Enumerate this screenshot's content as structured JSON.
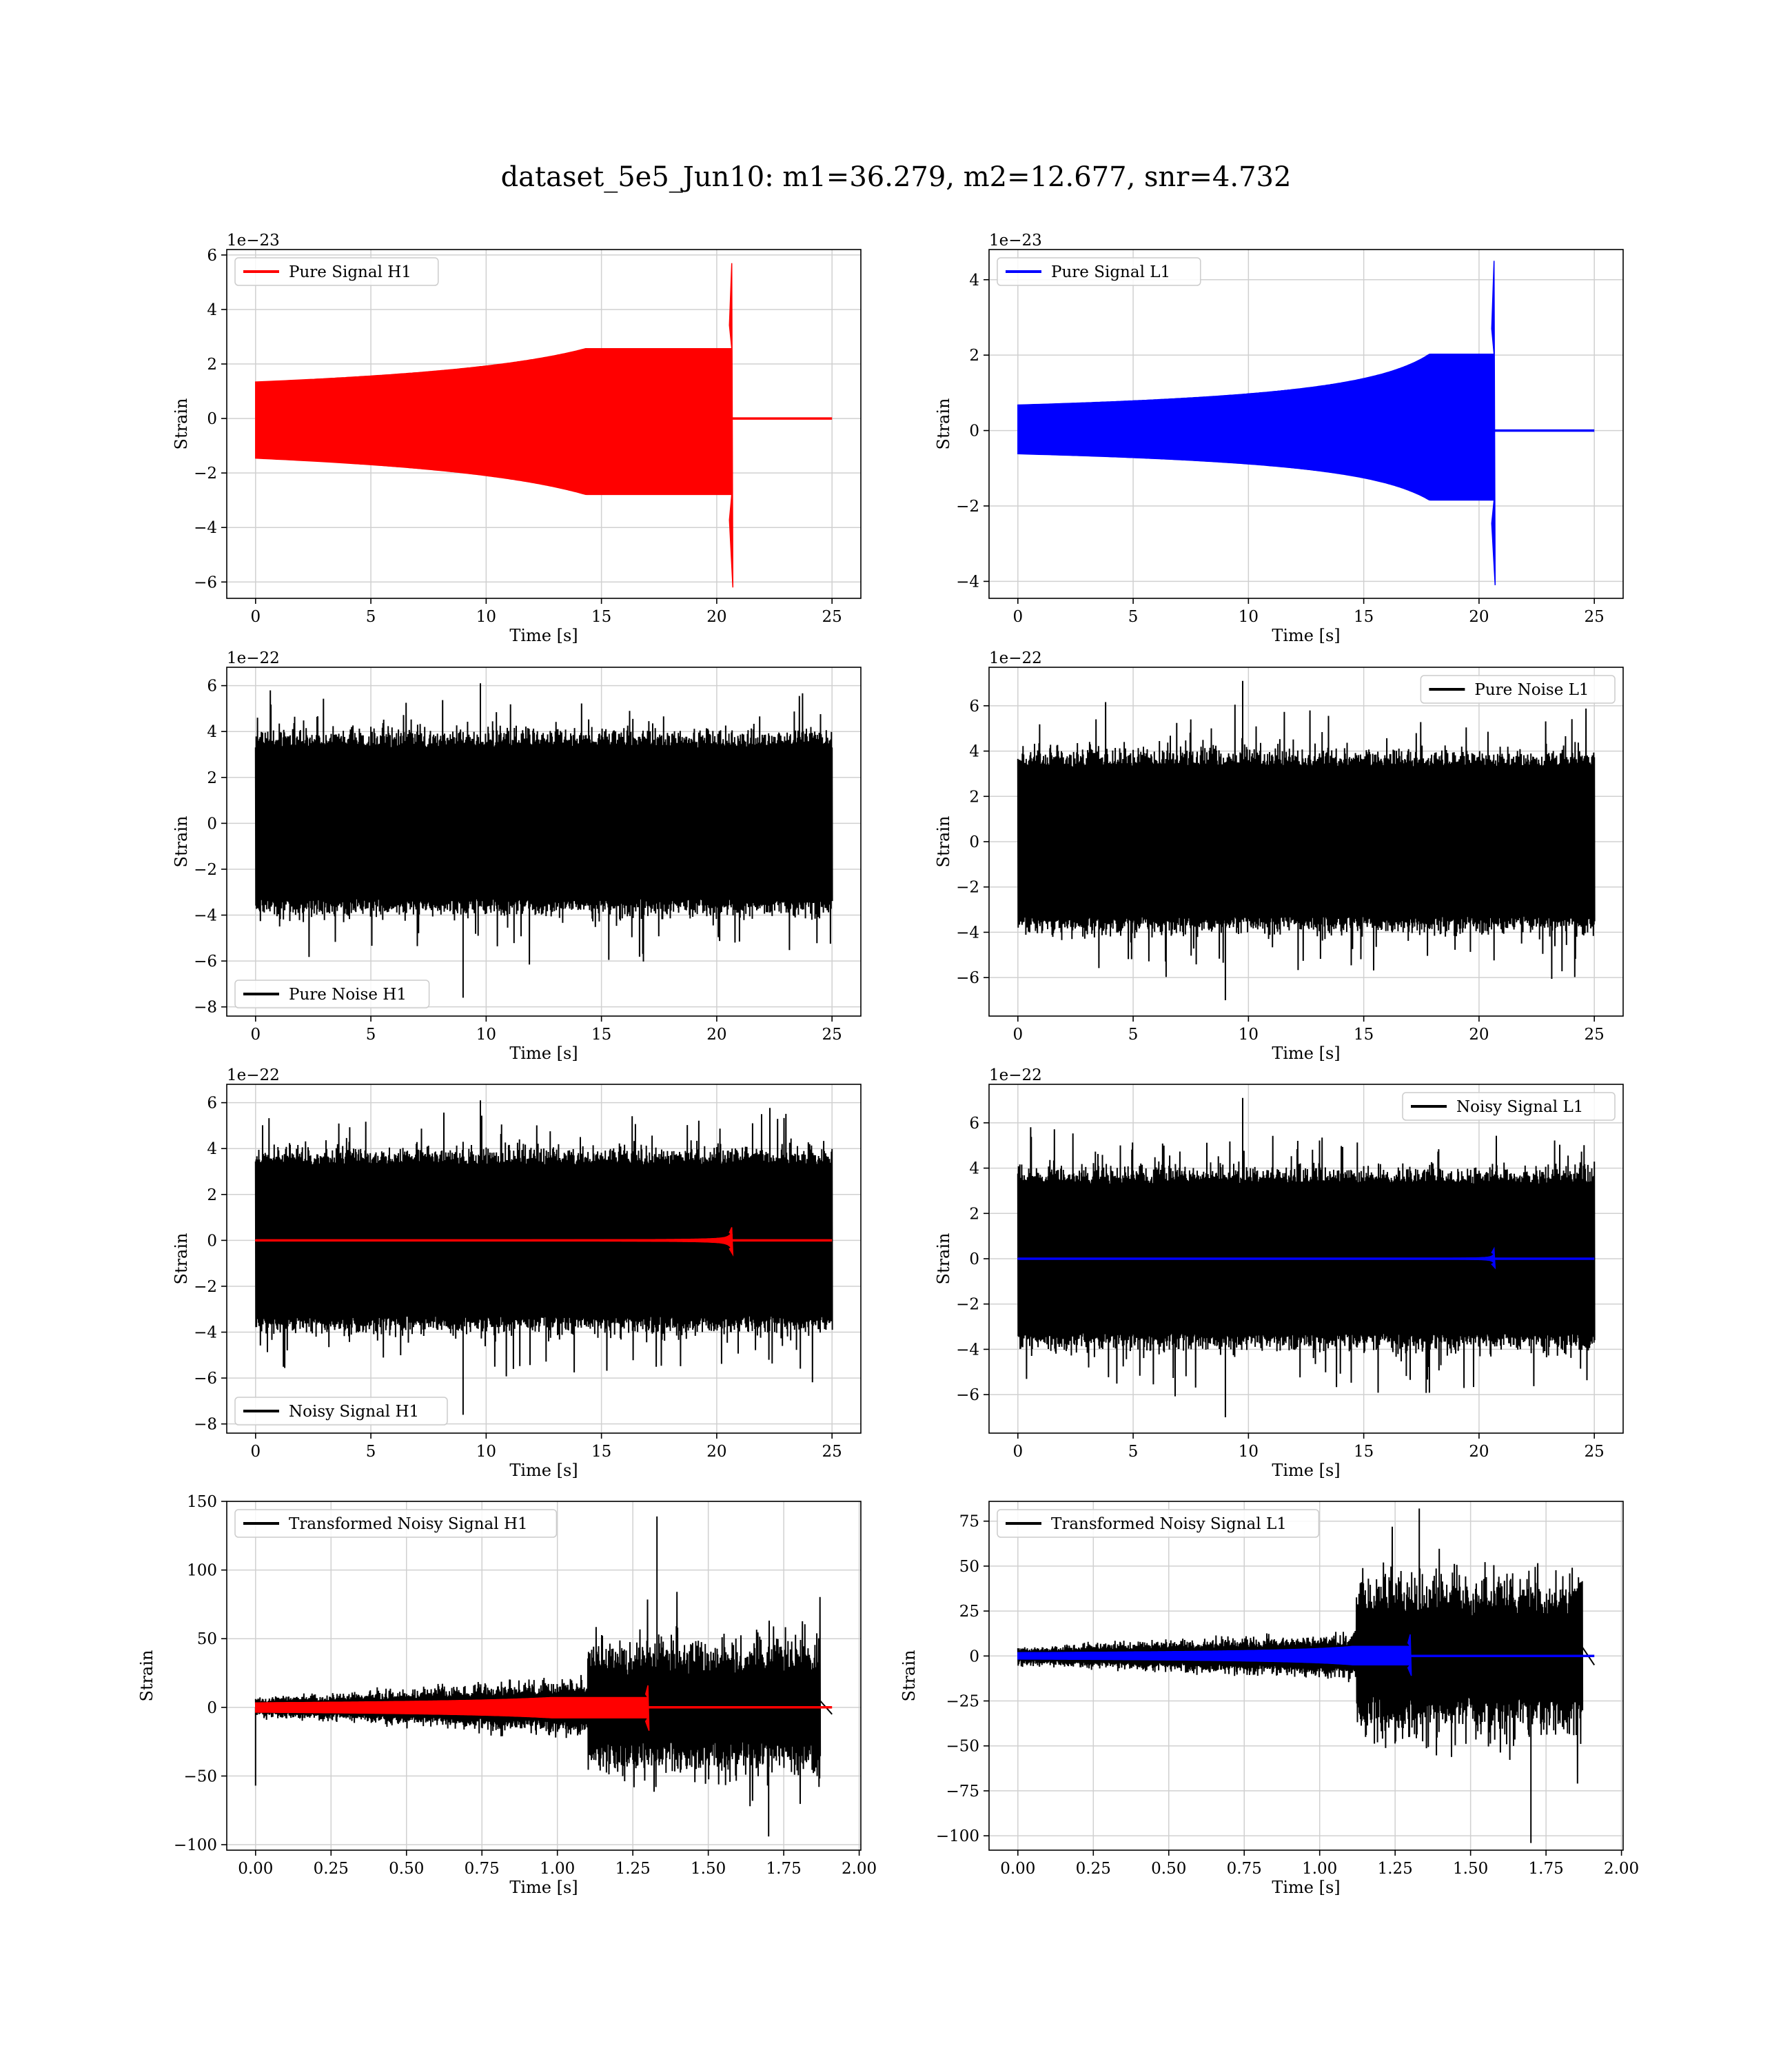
{
  "figure": {
    "title": "dataset_5e5_Jun10: m1=36.279, m2=12.677, snr=4.732"
  },
  "colors": {
    "signal_h1": "#ff0000",
    "signal_l1": "#0000ff",
    "noise": "#000000",
    "grid": "#d0d0d0"
  },
  "chart_data": [
    {
      "id": "pure-signal-h1",
      "type": "line",
      "xlabel": "Time [s]",
      "ylabel": "Strain",
      "offset_text": "1e−23",
      "xlim": [
        -1.25,
        26.25
      ],
      "ylim": [
        -6.6,
        6.2
      ],
      "xticks": [
        0,
        5,
        10,
        15,
        20,
        25
      ],
      "yticks": [
        -6,
        -4,
        -2,
        0,
        2,
        4,
        6
      ],
      "xtick_labels": [
        "0",
        "5",
        "10",
        "15",
        "20",
        "25"
      ],
      "ytick_labels": [
        "−6",
        "−4",
        "−2",
        "0",
        "2",
        "4",
        "6"
      ],
      "legend": {
        "placement": "upper-left",
        "entries": [
          {
            "label": "Pure Signal H1",
            "color": "#ff0000"
          }
        ]
      },
      "series": [
        {
          "name": "Pure Signal H1",
          "color": "#ff0000",
          "kind": "chirp",
          "duration": 25,
          "merger": 20.65,
          "peak_pos": 5.7,
          "peak_neg": -6.2,
          "pre_amp": 2.5
        }
      ],
      "grid": true
    },
    {
      "id": "pure-signal-l1",
      "type": "line",
      "xlabel": "Time [s]",
      "ylabel": "Strain",
      "offset_text": "1e−23",
      "xlim": [
        -1.25,
        26.25
      ],
      "ylim": [
        -4.45,
        4.8
      ],
      "xticks": [
        0,
        5,
        10,
        15,
        20,
        25
      ],
      "yticks": [
        -4,
        -2,
        0,
        2,
        4
      ],
      "xtick_labels": [
        "0",
        "5",
        "10",
        "15",
        "20",
        "25"
      ],
      "ytick_labels": [
        "−4",
        "−2",
        "0",
        "2",
        "4"
      ],
      "legend": {
        "placement": "upper-left",
        "entries": [
          {
            "label": "Pure Signal L1",
            "color": "#0000ff"
          }
        ]
      },
      "series": [
        {
          "name": "Pure Signal L1",
          "color": "#0000ff",
          "kind": "chirp",
          "duration": 25,
          "merger": 20.65,
          "peak_pos": 4.5,
          "peak_neg": -4.1,
          "pre_amp": 1.6
        }
      ],
      "grid": true
    },
    {
      "id": "pure-noise-h1",
      "type": "line",
      "xlabel": "Time [s]",
      "ylabel": "Strain",
      "offset_text": "1e−22",
      "xlim": [
        -1.25,
        26.25
      ],
      "ylim": [
        -8.4,
        6.8
      ],
      "xticks": [
        0,
        5,
        10,
        15,
        20,
        25
      ],
      "yticks": [
        -8,
        -6,
        -4,
        -2,
        0,
        2,
        4,
        6
      ],
      "xtick_labels": [
        "0",
        "5",
        "10",
        "15",
        "20",
        "25"
      ],
      "ytick_labels": [
        "−8",
        "−6",
        "−4",
        "−2",
        "0",
        "2",
        "4",
        "6"
      ],
      "legend": {
        "placement": "lower-left",
        "entries": [
          {
            "label": "Pure Noise H1",
            "color": "#000000"
          }
        ]
      },
      "series": [
        {
          "name": "Pure Noise H1",
          "color": "#000000",
          "kind": "noise",
          "duration": 25,
          "spike_max": 6.1,
          "spike_min": -7.6
        }
      ],
      "grid": true
    },
    {
      "id": "pure-noise-l1",
      "type": "line",
      "xlabel": "Time [s]",
      "ylabel": "Strain",
      "offset_text": "1e−22",
      "xlim": [
        -1.25,
        26.25
      ],
      "ylim": [
        -7.7,
        7.7
      ],
      "xticks": [
        0,
        5,
        10,
        15,
        20,
        25
      ],
      "yticks": [
        -6,
        -4,
        -2,
        0,
        2,
        4,
        6
      ],
      "xtick_labels": [
        "0",
        "5",
        "10",
        "15",
        "20",
        "25"
      ],
      "ytick_labels": [
        "−6",
        "−4",
        "−2",
        "0",
        "2",
        "4",
        "6"
      ],
      "legend": {
        "placement": "upper-right",
        "entries": [
          {
            "label": "Pure Noise L1",
            "color": "#000000"
          }
        ]
      },
      "series": [
        {
          "name": "Pure Noise L1",
          "color": "#000000",
          "kind": "noise",
          "duration": 25,
          "spike_max": 7.1,
          "spike_min": -7.0
        }
      ],
      "grid": true
    },
    {
      "id": "noisy-signal-h1",
      "type": "line",
      "xlabel": "Time [s]",
      "ylabel": "Strain",
      "offset_text": "1e−22",
      "xlim": [
        -1.25,
        26.25
      ],
      "ylim": [
        -8.4,
        6.8
      ],
      "xticks": [
        0,
        5,
        10,
        15,
        20,
        25
      ],
      "yticks": [
        -8,
        -6,
        -4,
        -2,
        0,
        2,
        4,
        6
      ],
      "xtick_labels": [
        "0",
        "5",
        "10",
        "15",
        "20",
        "25"
      ],
      "ytick_labels": [
        "−8",
        "−6",
        "−4",
        "−2",
        "0",
        "2",
        "4",
        "6"
      ],
      "legend": {
        "placement": "lower-left",
        "entries": [
          {
            "label": "Noisy Signal H1",
            "color": "#000000"
          }
        ]
      },
      "series": [
        {
          "name": "Noisy Signal H1",
          "color": "#000000",
          "kind": "noise",
          "duration": 25,
          "spike_max": 6.1,
          "spike_min": -7.6
        },
        {
          "color": "#ff0000",
          "kind": "chirp",
          "duration": 25,
          "merger": 20.65,
          "peak_pos": 0.57,
          "peak_neg": -0.62,
          "pre_amp": 0.25
        }
      ],
      "grid": true
    },
    {
      "id": "noisy-signal-l1",
      "type": "line",
      "xlabel": "Time [s]",
      "ylabel": "Strain",
      "offset_text": "1e−22",
      "xlim": [
        -1.25,
        26.25
      ],
      "ylim": [
        -7.7,
        7.7
      ],
      "xticks": [
        0,
        5,
        10,
        15,
        20,
        25
      ],
      "yticks": [
        -6,
        -4,
        -2,
        0,
        2,
        4,
        6
      ],
      "xtick_labels": [
        "0",
        "5",
        "10",
        "15",
        "20",
        "25"
      ],
      "ytick_labels": [
        "−6",
        "−4",
        "−2",
        "0",
        "2",
        "4",
        "6"
      ],
      "legend": {
        "placement": "upper-right",
        "entries": [
          {
            "label": "Noisy Signal L1",
            "color": "#000000"
          }
        ]
      },
      "series": [
        {
          "name": "Noisy Signal L1",
          "color": "#000000",
          "kind": "noise",
          "duration": 25,
          "spike_max": 7.1,
          "spike_min": -7.0
        },
        {
          "color": "#0000ff",
          "kind": "chirp",
          "duration": 25,
          "merger": 20.65,
          "peak_pos": 0.45,
          "peak_neg": -0.41,
          "pre_amp": 0.16
        }
      ],
      "grid": true
    },
    {
      "id": "transformed-noisy-signal-h1",
      "type": "line",
      "xlabel": "Time [s]",
      "ylabel": "Strain",
      "offset_text": "",
      "xlim": [
        -0.0955,
        2.0055
      ],
      "ylim": [
        -104,
        150
      ],
      "xticks": [
        0,
        0.25,
        0.5,
        0.75,
        1.0,
        1.25,
        1.5,
        1.75,
        2.0
      ],
      "yticks": [
        -100,
        -50,
        0,
        50,
        100,
        150
      ],
      "xtick_labels": [
        "0.00",
        "0.25",
        "0.50",
        "0.75",
        "1.00",
        "1.25",
        "1.50",
        "1.75",
        "2.00"
      ],
      "ytick_labels": [
        "−100",
        "−50",
        "0",
        "50",
        "100",
        "150"
      ],
      "legend": {
        "placement": "upper-left",
        "entries": [
          {
            "label": "Transformed Noisy Signal H1",
            "color": "#000000"
          }
        ]
      },
      "series": [
        {
          "name": "Transformed Noisy Signal H1",
          "color": "#000000",
          "kind": "whitened",
          "duration": 1.91,
          "cut": 1.87,
          "step_t": 1.1,
          "pre_start": 8,
          "pre_end": 25,
          "post": 60,
          "spike_max": 139,
          "spike_min": -94,
          "start_dip": -57
        },
        {
          "color": "#ff0000",
          "kind": "chirp",
          "duration": 1.91,
          "merger": 1.3,
          "peak_pos": 16,
          "peak_neg": -17,
          "pre_amp": 2
        }
      ],
      "grid": true
    },
    {
      "id": "transformed-noisy-signal-l1",
      "type": "line",
      "xlabel": "Time [s]",
      "ylabel": "Strain",
      "offset_text": "",
      "xlim": [
        -0.0955,
        2.0055
      ],
      "ylim": [
        -108,
        86
      ],
      "xticks": [
        0,
        0.25,
        0.5,
        0.75,
        1.0,
        1.25,
        1.5,
        1.75,
        2.0
      ],
      "yticks": [
        -100,
        -75,
        -50,
        -25,
        0,
        25,
        50,
        75
      ],
      "xtick_labels": [
        "0.00",
        "0.25",
        "0.50",
        "0.75",
        "1.00",
        "1.25",
        "1.50",
        "1.75",
        "2.00"
      ],
      "ytick_labels": [
        "−100",
        "−75",
        "−50",
        "−25",
        "0",
        "25",
        "50",
        "75"
      ],
      "legend": {
        "placement": "upper-left",
        "entries": [
          {
            "label": "Transformed Noisy Signal L1",
            "color": "#000000"
          }
        ]
      },
      "series": [
        {
          "name": "Transformed Noisy Signal L1",
          "color": "#000000",
          "kind": "whitened",
          "duration": 1.91,
          "cut": 1.87,
          "step_t": 1.12,
          "pre_start": 6,
          "pre_end": 15,
          "post": 55,
          "spike_max": 82,
          "spike_min": -104,
          "start_dip": 0
        },
        {
          "color": "#0000ff",
          "kind": "chirp",
          "duration": 1.91,
          "merger": 1.3,
          "peak_pos": 12,
          "peak_neg": -11,
          "pre_amp": 1.5
        }
      ],
      "grid": true
    }
  ]
}
